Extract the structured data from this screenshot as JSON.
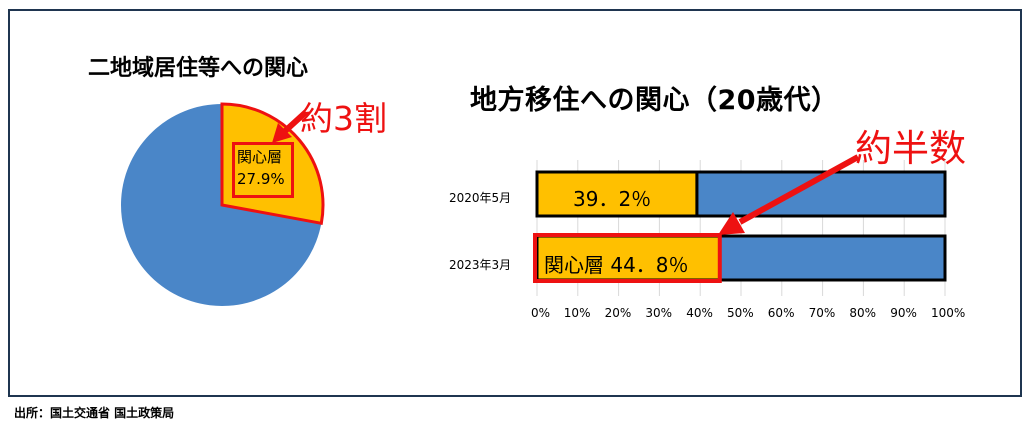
{
  "pie_title": "二地域居住等への関心",
  "bar_title": "地方移住への関心（20歳代）",
  "callout_pie": "約3割",
  "callout_bar": "約半数",
  "pie_label_line1": "関心層",
  "pie_label_line2": "27.9%",
  "source": "出所：国土交通省 国土政策局",
  "colors": {
    "interest": "#ffc000",
    "other": "#4a86c8",
    "highlight": "#ee1111"
  },
  "chart_data": [
    {
      "type": "pie",
      "title": "二地域居住等への関心",
      "slices": [
        {
          "label": "関心層",
          "value": 27.9
        },
        {
          "label": "",
          "value": 72.1
        }
      ]
    },
    {
      "type": "bar",
      "orientation": "horizontal",
      "stacked": true,
      "title": "地方移住への関心（20歳代）",
      "categories": [
        "2020年5月",
        "2023年3月"
      ],
      "values": [
        39.2,
        44.8
      ],
      "data_labels": [
        "39．2％",
        "関心層 44．8％"
      ],
      "xlim": [
        0,
        100
      ],
      "xticks": [
        "0%",
        "10%",
        "20%",
        "30%",
        "40%",
        "50%",
        "60%",
        "70%",
        "80%",
        "90%",
        "100%"
      ],
      "grid": true
    }
  ]
}
